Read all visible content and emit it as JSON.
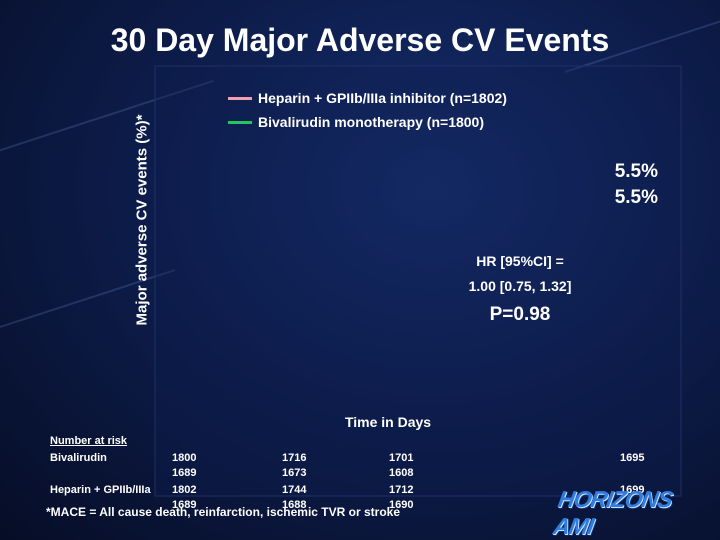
{
  "title": "30 Day Major Adverse CV Events",
  "chart_data": {
    "type": "line",
    "ylabel": "Major adverse CV events (%)*",
    "xlabel": "Time in Days",
    "series": [
      {
        "name": "Heparin + GPIIb/IIIa inhibitor (n=1802)",
        "color": "#f0a0b0",
        "end_value_label": "5.5%"
      },
      {
        "name": "Bivalirudin monotherapy (n=1800)",
        "color": "#22c55e",
        "end_value_label": "5.5%"
      }
    ],
    "annotations": {
      "hr_line1": "HR [95%CI] =",
      "hr_line2": "1.00 [0.75, 1.32]",
      "p_value": "P=0.98"
    },
    "grid": false
  },
  "risk_table": {
    "header": "Number at risk",
    "rows": [
      {
        "label": "Bivalirudin",
        "primary": [
          "1800",
          "1716",
          "1701",
          "1695"
        ],
        "secondary": [
          "1689",
          "1673",
          "1608"
        ]
      },
      {
        "label": "Heparin + GPIIb/IIIa",
        "primary": [
          "1802",
          "1744",
          "1712",
          "1699"
        ],
        "secondary": [
          "1689",
          "1688",
          "1690"
        ]
      }
    ]
  },
  "footnote": "*MACE = All cause death, reinfarction, ischemic TVR or stroke",
  "logo": "HORIZONS AMI"
}
